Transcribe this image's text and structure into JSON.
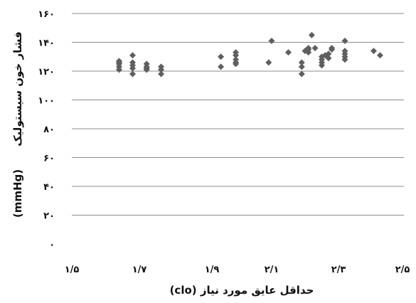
{
  "chart_data": {
    "type": "scatter",
    "xlabel": "حداقل عایق مورد نیاز (clo)",
    "ylabel": "فشار خون سیستولیک",
    "ylabel_unit": "(mmHg)",
    "xlim": [
      1.5,
      2.5
    ],
    "ylim": [
      0,
      160
    ],
    "x_ticks": [
      1.5,
      1.7,
      1.9,
      2.1,
      2.3,
      2.5
    ],
    "x_tick_labels": [
      "۱/۵",
      "۱/۷",
      "۱/۹",
      "۲/۱",
      "۲/۳",
      "۲/۵"
    ],
    "y_ticks": [
      0,
      20,
      40,
      60,
      80,
      100,
      120,
      140,
      160
    ],
    "y_tick_labels": [
      "۰",
      "۲۰",
      "۴۰",
      "۶۰",
      "۸۰",
      "۱۰۰",
      "۱۲۰",
      "۱۴۰",
      "۱۶۰"
    ],
    "grid": "horizontal",
    "color": "#5f5f5f",
    "series": [
      {
        "x": [
          1.64,
          1.64,
          1.64,
          1.64,
          1.64,
          1.68,
          1.68,
          1.68,
          1.68,
          1.68,
          1.72,
          1.72,
          1.72,
          1.72,
          1.76,
          1.76,
          1.76,
          1.93,
          1.93,
          1.98,
          1.98,
          1.98,
          1.98,
          1.98,
          2.09,
          2.1,
          2.15,
          2.19,
          2.19,
          2.19,
          2.2,
          2.21,
          2.21,
          2.21,
          2.22,
          2.23,
          2.25,
          2.25,
          2.25,
          2.25,
          2.26,
          2.27,
          2.27,
          2.28,
          2.28,
          2.32,
          2.32,
          2.32,
          2.32,
          2.32,
          2.41,
          2.43
        ],
        "y": [
          121,
          123,
          125,
          126,
          127,
          118,
          122,
          126,
          131,
          124,
          121,
          123,
          125,
          122,
          118,
          121,
          123,
          123,
          130,
          125,
          126,
          128,
          131,
          133,
          126,
          141,
          133,
          118,
          123,
          126,
          134,
          136,
          133,
          135,
          145,
          136,
          124,
          126,
          128,
          130,
          131,
          129,
          132,
          135,
          136,
          128,
          130,
          132,
          134,
          141,
          134,
          131
        ]
      }
    ]
  }
}
